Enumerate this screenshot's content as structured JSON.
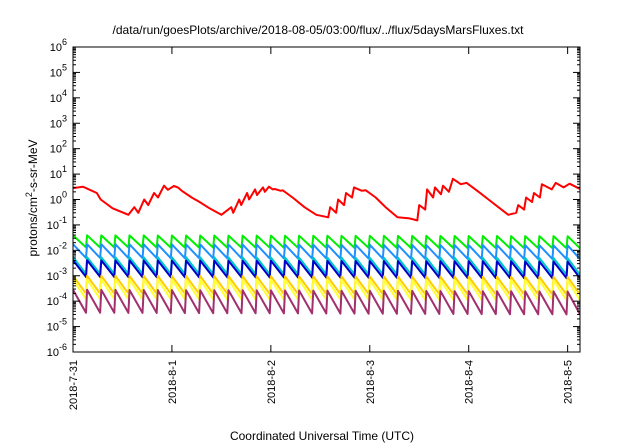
{
  "chart_data": {
    "type": "line",
    "title": "/data/run/goesPlots/archive/2018-08-05/03:00/flux/../flux/5daysMarsFluxes.txt",
    "xlabel": "Coordinated Universal Time (UTC)",
    "ylabel": "protons/cm2-s-sr-MeV",
    "ylabel_parts": {
      "before": "protons/cm",
      "sup": "2",
      "after": "-s-sr-MeV"
    },
    "y_scale": "log",
    "ylim": [
      1e-06,
      1000000.0
    ],
    "y_ticks": [
      {
        "value": 1e-06,
        "base": "10",
        "exp": "-6"
      },
      {
        "value": 1e-05,
        "base": "10",
        "exp": "-5"
      },
      {
        "value": 0.0001,
        "base": "10",
        "exp": "-4"
      },
      {
        "value": 0.001,
        "base": "10",
        "exp": "-3"
      },
      {
        "value": 0.01,
        "base": "10",
        "exp": "-2"
      },
      {
        "value": 0.1,
        "base": "10",
        "exp": "-1"
      },
      {
        "value": 1,
        "base": "10",
        "exp": "0"
      },
      {
        "value": 10.0,
        "base": "10",
        "exp": "1"
      },
      {
        "value": 100.0,
        "base": "10",
        "exp": "2"
      },
      {
        "value": 1000.0,
        "base": "10",
        "exp": "3"
      },
      {
        "value": 10000.0,
        "base": "10",
        "exp": "4"
      },
      {
        "value": 100000.0,
        "base": "10",
        "exp": "5"
      },
      {
        "value": 1000000.0,
        "base": "10",
        "exp": "6"
      }
    ],
    "xlim": [
      "2018-07-31 00:00",
      "2018-08-05 03:00"
    ],
    "x_ticks": [
      {
        "value": "2018-07-31 00:00",
        "label": "2018-7-31"
      },
      {
        "value": "2018-08-01 00:00",
        "label": "2018-8-1"
      },
      {
        "value": "2018-08-02 00:00",
        "label": "2018-8-2"
      },
      {
        "value": "2018-08-03 00:00",
        "label": "2018-8-3"
      },
      {
        "value": "2018-08-04 00:00",
        "label": "2018-8-4"
      },
      {
        "value": "2018-08-05 00:00",
        "label": "2018-8-5"
      }
    ],
    "grid": false,
    "legend": "none",
    "series": [
      {
        "color": "#ff0000",
        "x": [
          "2018-07-31 00:00",
          "2018-07-31 02:24",
          "2018-07-31 05:46",
          "2018-07-31 06:43",
          "2018-07-31 09:36",
          "2018-07-31 13:26",
          "2018-07-31 14:52",
          "2018-07-31 15:50",
          "2018-07-31 17:17",
          "2018-07-31 18:14",
          "2018-07-31 19:41",
          "2018-07-31 20:38",
          "2018-07-31 22:05",
          "2018-07-31 23:02",
          "2018-08-01 00:29",
          "2018-08-01 01:26",
          "2018-08-01 02:24",
          "2018-08-01 04:48",
          "2018-08-01 06:43",
          "2018-08-01 09:07",
          "2018-08-01 12:00",
          "2018-08-01 14:24",
          "2018-08-01 14:52",
          "2018-08-01 16:19",
          "2018-08-01 16:48",
          "2018-08-01 18:14",
          "2018-08-01 18:43",
          "2018-08-01 20:10",
          "2018-08-01 20:38",
          "2018-08-01 22:05",
          "2018-08-01 22:34",
          "2018-08-01 23:31",
          "2018-08-02 00:29",
          "2018-08-02 00:58",
          "2018-08-02 02:24",
          "2018-08-02 02:53",
          "2018-08-02 05:17",
          "2018-08-02 08:10",
          "2018-08-02 11:02",
          "2018-08-02 13:55",
          "2018-08-02 14:24",
          "2018-08-02 15:50",
          "2018-08-02 16:19",
          "2018-08-02 17:46",
          "2018-08-02 18:14",
          "2018-08-02 19:41",
          "2018-08-02 20:10",
          "2018-08-02 22:05",
          "2018-08-02 23:02",
          "2018-08-03 01:26",
          "2018-08-03 03:50",
          "2018-08-03 06:43",
          "2018-08-03 09:36",
          "2018-08-03 11:31",
          "2018-08-03 12:00",
          "2018-08-03 13:26",
          "2018-08-03 13:55",
          "2018-08-03 15:22",
          "2018-08-03 15:50",
          "2018-08-03 17:17",
          "2018-08-03 17:46",
          "2018-08-03 19:12",
          "2018-08-03 20:10",
          "2018-08-03 22:05",
          "2018-08-03 23:31",
          "2018-08-04 02:24",
          "2018-08-04 04:48",
          "2018-08-04 07:12",
          "2018-08-04 09:36",
          "2018-08-04 11:31",
          "2018-08-04 12:00",
          "2018-08-04 13:26",
          "2018-08-04 13:55",
          "2018-08-04 15:22",
          "2018-08-04 15:50",
          "2018-08-04 17:17",
          "2018-08-04 17:46",
          "2018-08-04 20:10",
          "2018-08-04 21:07",
          "2018-08-04 23:02",
          "2018-08-05 00:29",
          "2018-08-05 01:55",
          "2018-08-05 03:00"
        ],
        "values": [
          2.8,
          3.2,
          1.8,
          1.0,
          0.45,
          0.25,
          0.5,
          0.3,
          1.0,
          0.6,
          1.8,
          1.2,
          3.5,
          2.4,
          3.4,
          3.0,
          2.2,
          1.2,
          0.8,
          0.45,
          0.25,
          0.5,
          0.3,
          1.0,
          0.6,
          1.8,
          1.0,
          2.5,
          1.5,
          3.0,
          2.0,
          3.2,
          2.5,
          2.6,
          2.2,
          2.3,
          1.2,
          0.5,
          0.25,
          0.2,
          0.5,
          0.3,
          1.0,
          0.6,
          1.8,
          1.2,
          3.0,
          2.2,
          2.3,
          1.2,
          0.5,
          0.2,
          0.18,
          0.15,
          0.6,
          0.4,
          2.5,
          1.2,
          3.0,
          1.6,
          3.5,
          2.0,
          6.5,
          4.0,
          4.5,
          2.0,
          1.0,
          0.5,
          0.25,
          0.3,
          0.6,
          0.4,
          1.2,
          0.8,
          1.8,
          1.2,
          4.0,
          2.5,
          4.5,
          3.0,
          4.2,
          3.2,
          2.6
        ],
        "peaks_per_day": 0,
        "base_start": 0,
        "base_end": 0
      },
      {
        "color": "#00ee00",
        "peaks_per_day": 7,
        "base_start": 0.013,
        "base_end": 0.012,
        "spike_ratio": 3.0
      },
      {
        "color": "#1e90ff",
        "peaks_per_day": 7,
        "base_start": 0.005,
        "base_end": 0.0045,
        "spike_ratio": 3.5
      },
      {
        "color": "#00c8c8",
        "peaks_per_day": 7,
        "base_start": 0.0012,
        "base_end": 0.0011,
        "spike_ratio": 4.5
      },
      {
        "color": "#0000c8",
        "peaks_per_day": 7,
        "base_start": 0.0009,
        "base_end": 0.0008,
        "spike_ratio": 4.5
      },
      {
        "color": "#ffcc00",
        "peaks_per_day": 7,
        "base_start": 0.0002,
        "base_end": 0.00018,
        "spike_ratio": 5.0
      },
      {
        "color": "#ffff33",
        "peaks_per_day": 7,
        "base_start": 0.00012,
        "base_end": 0.00011,
        "spike_ratio": 6.0
      },
      {
        "color": "#a0306e",
        "peaks_per_day": 7,
        "base_start": 3.5e-05,
        "base_end": 3e-05,
        "spike_ratio": 8.0
      }
    ]
  }
}
